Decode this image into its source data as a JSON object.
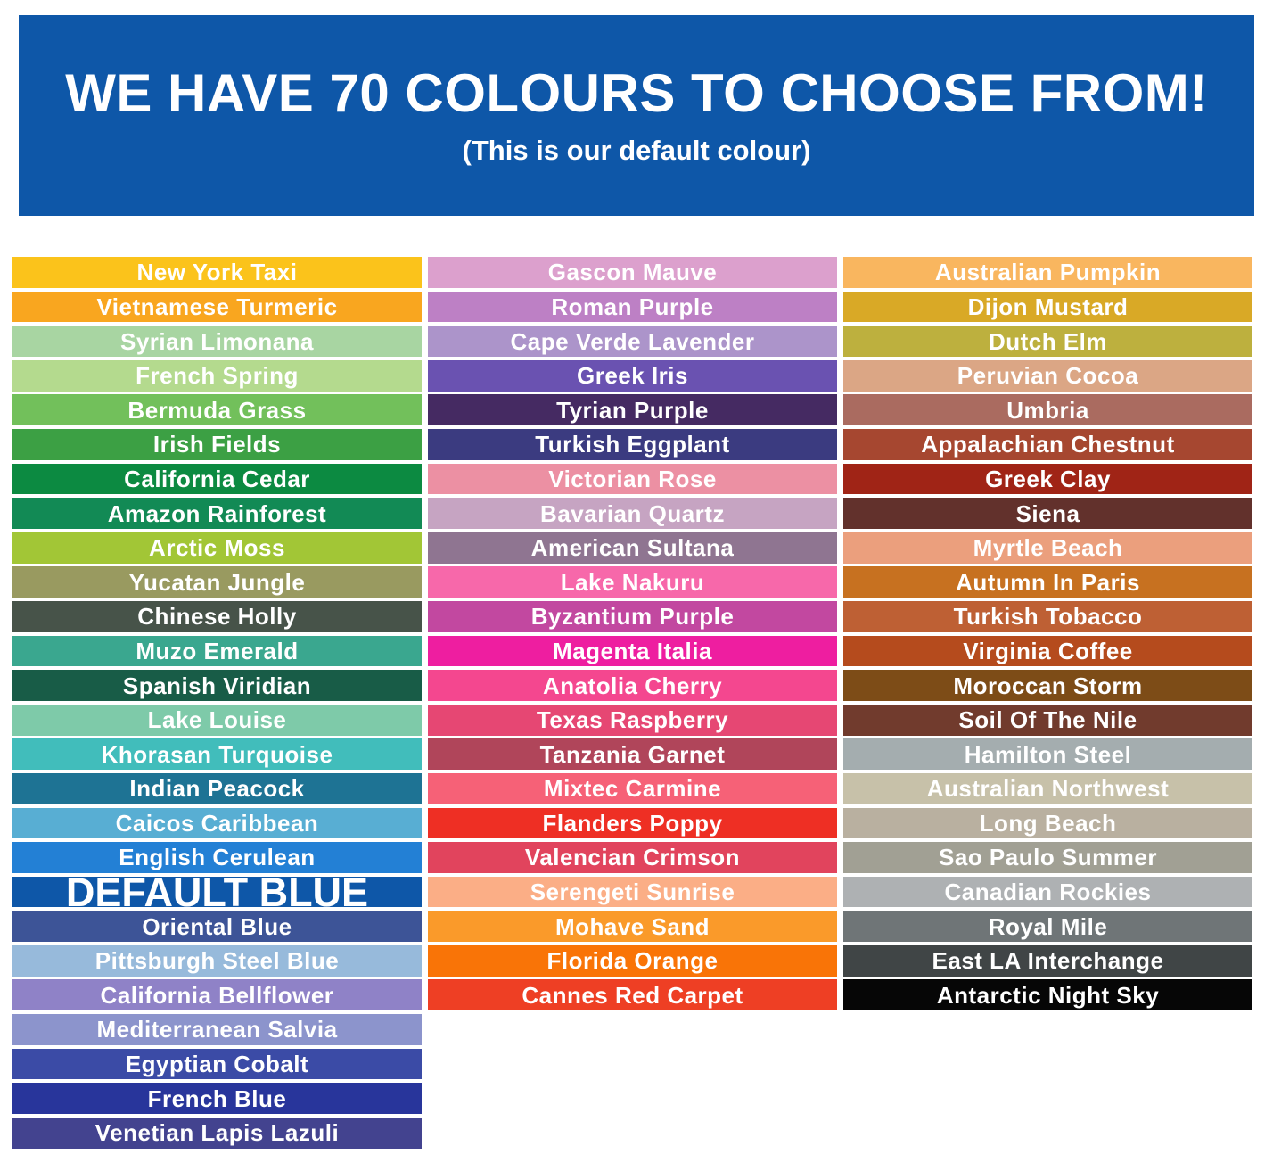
{
  "banner": {
    "title": "WE HAVE 70 COLOURS TO CHOOSE FROM!",
    "subtitle": "(This is our default colour)",
    "background": "#0E57A8"
  },
  "chart_data": {
    "type": "table",
    "title": "WE HAVE 70 COLOURS TO CHOOSE FROM!",
    "subtitle": "(This is our default colour)",
    "total_colours": 70,
    "default_colour": {
      "name": "DEFAULT BLUE",
      "hex": "#0E57A8"
    },
    "columns": [
      {
        "swatches": [
          {
            "name": "New York Taxi",
            "hex": "#FBC31B"
          },
          {
            "name": "Vietnamese Turmeric",
            "hex": "#F9A61F"
          },
          {
            "name": "Syrian Limonana",
            "hex": "#A8D5A2"
          },
          {
            "name": "French Spring",
            "hex": "#B4DA8E"
          },
          {
            "name": "Bermuda Grass",
            "hex": "#72C05B"
          },
          {
            "name": "Irish Fields",
            "hex": "#3CA044"
          },
          {
            "name": "California Cedar",
            "hex": "#0C8A41"
          },
          {
            "name": "Amazon Rainforest",
            "hex": "#128A55"
          },
          {
            "name": "Arctic Moss",
            "hex": "#A2C636"
          },
          {
            "name": "Yucatan Jungle",
            "hex": "#999A60"
          },
          {
            "name": "Chinese Holly",
            "hex": "#475349"
          },
          {
            "name": "Muzo Emerald",
            "hex": "#3AA78F"
          },
          {
            "name": "Spanish Viridian",
            "hex": "#185C47"
          },
          {
            "name": "Lake Louise",
            "hex": "#7ECAA9"
          },
          {
            "name": "Khorasan Turquoise",
            "hex": "#41BDBB"
          },
          {
            "name": "Indian Peacock",
            "hex": "#1E7394"
          },
          {
            "name": "Caicos Caribbean",
            "hex": "#58AED3"
          },
          {
            "name": "English Cerulean",
            "hex": "#2380D5"
          },
          {
            "name": "DEFAULT BLUE",
            "hex": "#0E57A8",
            "default": true
          },
          {
            "name": "Oriental Blue",
            "hex": "#3D5497"
          },
          {
            "name": "Pittsburgh Steel Blue",
            "hex": "#97BADB"
          },
          {
            "name": "California Bellflower",
            "hex": "#8F82C7"
          },
          {
            "name": "Mediterranean Salvia",
            "hex": "#8C94CC"
          },
          {
            "name": "Egyptian Cobalt",
            "hex": "#3B4BA6"
          },
          {
            "name": "French Blue",
            "hex": "#28359B"
          },
          {
            "name": "Venetian Lapis Lazuli",
            "hex": "#43438F"
          }
        ]
      },
      {
        "swatches": [
          {
            "name": "Gascon Mauve",
            "hex": "#DCA0CD"
          },
          {
            "name": "Roman Purple",
            "hex": "#BD80C5"
          },
          {
            "name": "Cape Verde Lavender",
            "hex": "#AC94CA"
          },
          {
            "name": "Greek Iris",
            "hex": "#6A52B1"
          },
          {
            "name": "Tyrian Purple",
            "hex": "#452A62"
          },
          {
            "name": "Turkish Eggplant",
            "hex": "#3B3B80"
          },
          {
            "name": "Victorian Rose",
            "hex": "#EC90A3"
          },
          {
            "name": "Bavarian Quartz",
            "hex": "#C6A4C2"
          },
          {
            "name": "American Sultana",
            "hex": "#8F7591"
          },
          {
            "name": "Lake Nakuru",
            "hex": "#F768AA"
          },
          {
            "name": "Byzantium Purple",
            "hex": "#C248A0"
          },
          {
            "name": "Magenta Italia",
            "hex": "#EE1EA0"
          },
          {
            "name": "Anatolia Cherry",
            "hex": "#F4478F"
          },
          {
            "name": "Texas Raspberry",
            "hex": "#E64773"
          },
          {
            "name": "Tanzania Garnet",
            "hex": "#B0455A"
          },
          {
            "name": "Mixtec Carmine",
            "hex": "#F66177"
          },
          {
            "name": "Flanders Poppy",
            "hex": "#EE2F24"
          },
          {
            "name": "Valencian Crimson",
            "hex": "#E1445D"
          },
          {
            "name": "Serengeti Sunrise",
            "hex": "#FBAE86"
          },
          {
            "name": "Mohave Sand",
            "hex": "#FA9A2A"
          },
          {
            "name": "Florida Orange",
            "hex": "#F97407"
          },
          {
            "name": "Cannes Red Carpet",
            "hex": "#EE3F24"
          }
        ]
      },
      {
        "swatches": [
          {
            "name": "Australian Pumpkin",
            "hex": "#F9B65F"
          },
          {
            "name": "Dijon Mustard",
            "hex": "#D9A926"
          },
          {
            "name": "Dutch Elm",
            "hex": "#BDB03E"
          },
          {
            "name": "Peruvian Cocoa",
            "hex": "#DBA685"
          },
          {
            "name": "Umbria",
            "hex": "#AA6B60"
          },
          {
            "name": "Appalachian Chestnut",
            "hex": "#A64730"
          },
          {
            "name": "Greek Clay",
            "hex": "#A02416"
          },
          {
            "name": "Siena",
            "hex": "#62312C"
          },
          {
            "name": "Myrtle Beach",
            "hex": "#EB9F7D"
          },
          {
            "name": "Autumn In Paris",
            "hex": "#C77120"
          },
          {
            "name": "Turkish Tobacco",
            "hex": "#BE6034"
          },
          {
            "name": "Virginia Coffee",
            "hex": "#B54B1D"
          },
          {
            "name": "Moroccan Storm",
            "hex": "#7D4C17"
          },
          {
            "name": "Soil Of The Nile",
            "hex": "#713B2D"
          },
          {
            "name": "Hamilton Steel",
            "hex": "#A4ADAF"
          },
          {
            "name": "Australian Northwest",
            "hex": "#C7C1A9"
          },
          {
            "name": "Long Beach",
            "hex": "#B9B0A0"
          },
          {
            "name": "Sao Paulo Summer",
            "hex": "#A1A094"
          },
          {
            "name": "Canadian Rockies",
            "hex": "#AEB1B3"
          },
          {
            "name": "Royal Mile",
            "hex": "#6F7577"
          },
          {
            "name": "East LA Interchange",
            "hex": "#404546"
          },
          {
            "name": "Antarctic Night Sky",
            "hex": "#060606"
          }
        ]
      }
    ]
  }
}
